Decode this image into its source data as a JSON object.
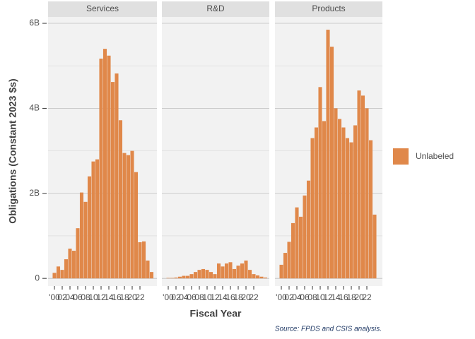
{
  "chart_data": {
    "type": "bar",
    "y_label": "Obligations (Constant 2023 $s)",
    "x_label": "Fiscal Year",
    "source": "Source: FPDS and CSIS analysis.",
    "categories": [
      "'00",
      null,
      "02",
      null,
      "04",
      null,
      "06",
      null,
      "08",
      null,
      "10",
      null,
      "12",
      null,
      "14",
      null,
      "16",
      null,
      "18",
      null,
      "20",
      null,
      "22",
      null,
      null,
      null
    ],
    "series": [
      {
        "name": "Unlabeled",
        "color": "#e0884a"
      }
    ],
    "facets": [
      {
        "name": "Services",
        "values": [
          130000000.0,
          280000000.0,
          200000000.0,
          450000000.0,
          700000000.0,
          650000000.0,
          1180000000.0,
          2020000000.0,
          1800000000.0,
          2400000000.0,
          2750000000.0,
          2800000000.0,
          5170000000.0,
          5400000000.0,
          5240000000.0,
          4620000000.0,
          4820000000.0,
          3720000000.0,
          2950000000.0,
          2900000000.0,
          3000000000.0,
          2500000000.0,
          850000000.0,
          870000000.0,
          420000000.0,
          150000000.0
        ]
      },
      {
        "name": "R&D",
        "values": [
          10000000.0,
          10000000.0,
          20000000.0,
          40000000.0,
          60000000.0,
          60000000.0,
          100000000.0,
          150000000.0,
          200000000.0,
          220000000.0,
          200000000.0,
          150000000.0,
          100000000.0,
          350000000.0,
          280000000.0,
          350000000.0,
          380000000.0,
          220000000.0,
          300000000.0,
          350000000.0,
          420000000.0,
          200000000.0,
          100000000.0,
          70000000.0,
          40000000.0,
          20000000.0
        ]
      },
      {
        "name": "Products",
        "values": [
          320000000.0,
          600000000.0,
          860000000.0,
          1300000000.0,
          1670000000.0,
          1450000000.0,
          1950000000.0,
          2300000000.0,
          3300000000.0,
          3550000000.0,
          4500000000.0,
          3700000000.0,
          5850000000.0,
          5450000000.0,
          4000000000.0,
          3750000000.0,
          3550000000.0,
          3300000000.0,
          3200000000.0,
          3600000000.0,
          4420000000.0,
          4300000000.0,
          4000000000.0,
          3250000000.0,
          1500000000.0,
          null
        ]
      }
    ],
    "ylim": [
      -180000000.0,
      6150000000.0
    ],
    "yticks": [
      {
        "value": 0,
        "label": "0"
      },
      {
        "value": 2000000000.0,
        "label": "2B"
      },
      {
        "value": 4000000000.0,
        "label": "4B"
      },
      {
        "value": 6000000000.0,
        "label": "6B"
      }
    ],
    "minor_yticks": [
      1000000000.0,
      3000000000.0,
      5000000000.0
    ],
    "grid": true
  }
}
